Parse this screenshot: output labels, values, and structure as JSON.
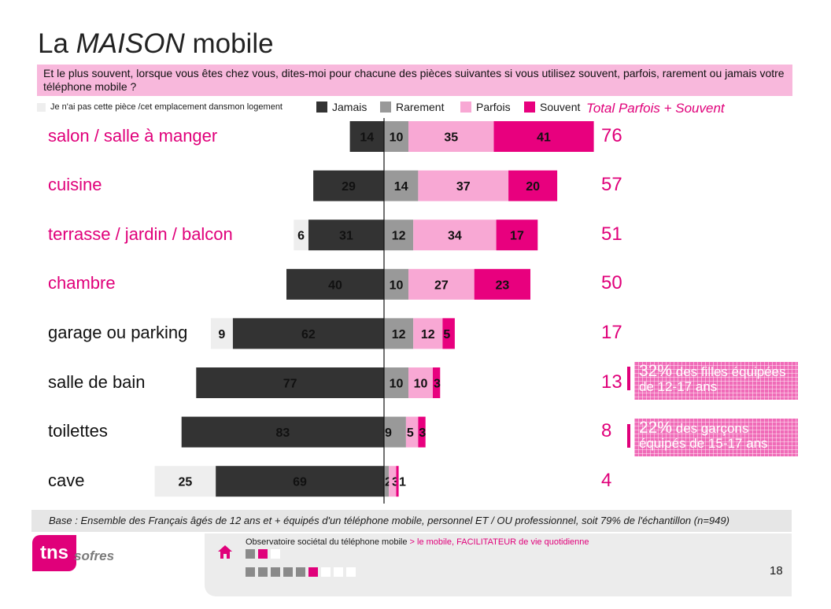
{
  "title": {
    "part1": "La ",
    "part2": "MAISON",
    "part3": " mobile"
  },
  "question": "Et le plus souvent, lorsque vous êtes chez vous, dites-moi pour chacune des pièces suivantes si vous utilisez souvent, parfois, rarement ou jamais votre téléphone mobile ?",
  "legend": {
    "no_room": "Je n'ai pas cette pièce /cet emplacement dansmon logement",
    "jamais": "Jamais",
    "rarement": "Rarement",
    "parfois": "Parfois",
    "souvent": "Souvent",
    "total": "Total Parfois + Souvent"
  },
  "colors": {
    "no_room": "#eeeeee",
    "jamais": "#333333",
    "rarement": "#999999",
    "parfois": "#f8a8d4",
    "souvent": "#e8007e",
    "accent": "#e0007a"
  },
  "chart_data": {
    "type": "bar",
    "orientation": "horizontal-diverging",
    "categories": [
      "salon / salle à manger",
      "cuisine",
      "terrasse / jardin / balcon",
      "chambre",
      "garage ou parking",
      "salle de bain",
      "toilettes",
      "cave"
    ],
    "category_highlight": [
      true,
      true,
      true,
      true,
      false,
      false,
      false,
      false
    ],
    "series": [
      {
        "name": "Je n'ai pas cette pièce /cet emplacement dansmon logement",
        "values": [
          0,
          0,
          6,
          0,
          9,
          0,
          0,
          25
        ],
        "labels": [
          "",
          "",
          "6",
          "",
          "9",
          "",
          "",
          "25"
        ]
      },
      {
        "name": "Jamais",
        "values": [
          14,
          29,
          31,
          40,
          62,
          77,
          83,
          69
        ],
        "labels": [
          "14",
          "29",
          "31",
          "40",
          "62",
          "77",
          "83",
          "69"
        ]
      },
      {
        "name": "Rarement",
        "values": [
          10,
          14,
          12,
          10,
          12,
          10,
          9,
          2
        ],
        "labels": [
          "10",
          "14",
          "12",
          "10",
          "12",
          "10",
          "9",
          "2"
        ]
      },
      {
        "name": "Parfois",
        "values": [
          35,
          37,
          34,
          27,
          12,
          10,
          5,
          3
        ],
        "labels": [
          "35",
          "37",
          "34",
          "27",
          "12",
          "10",
          "5",
          "3"
        ]
      },
      {
        "name": "Souvent",
        "values": [
          41,
          20,
          17,
          23,
          5,
          3,
          3,
          1
        ],
        "labels": [
          "41",
          "20",
          "17",
          "23",
          "5",
          "3",
          "3",
          "1"
        ]
      }
    ],
    "totals_label": "Total Parfois + Souvent",
    "totals": [
      "76",
      "57",
      "51",
      "50",
      "17",
      "13",
      "8",
      "4"
    ]
  },
  "notes": [
    {
      "pct": "32%",
      "text1": " des filles équipées",
      "text2": "de 12-17 ans"
    },
    {
      "pct": "22%",
      "text1": " des garçons",
      "text2": "équipés de 15-17 ans"
    }
  ],
  "base": "Base : Ensemble des Français âgés de 12 ans et + équipés d'un téléphone mobile, personnel ET / OU professionnel, soit 79% de l'échantillon (n=949)",
  "footer": {
    "observatoire": "Observatoire sociétal du téléphone mobile",
    "section": " > le mobile, FACILITATEUR de vie quotidienne",
    "page": "18",
    "logo_main": "tns",
    "logo_sub": "sofres"
  }
}
